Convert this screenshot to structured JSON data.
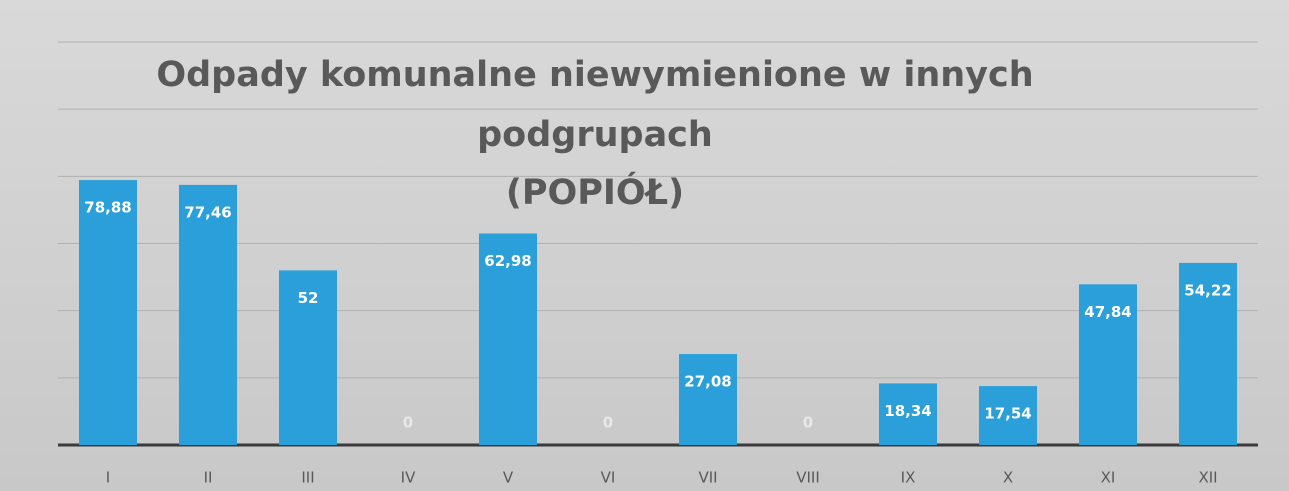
{
  "chart_data": {
    "type": "bar",
    "title": "Odpady komunalne niewymienione w innych podgrupach",
    "subtitle": "(POPIÓŁ)",
    "categories": [
      "I",
      "II",
      "III",
      "IV",
      "V",
      "VI",
      "VII",
      "VIII",
      "IX",
      "X",
      "XI",
      "XII"
    ],
    "values": [
      78.88,
      77.46,
      52,
      0,
      62.98,
      0,
      27.08,
      0,
      18.34,
      17.54,
      47.84,
      54.22
    ],
    "value_labels": [
      "78,88",
      "77,46",
      "52",
      "0",
      "62,98",
      "0",
      "27,08",
      "0",
      "18,34",
      "17,54",
      "47,84",
      "54,22"
    ],
    "color": "#2a9fd9",
    "ylim": [
      0,
      120
    ],
    "yticks": [
      0,
      20,
      40,
      60,
      80,
      100,
      120
    ],
    "grid": true
  }
}
